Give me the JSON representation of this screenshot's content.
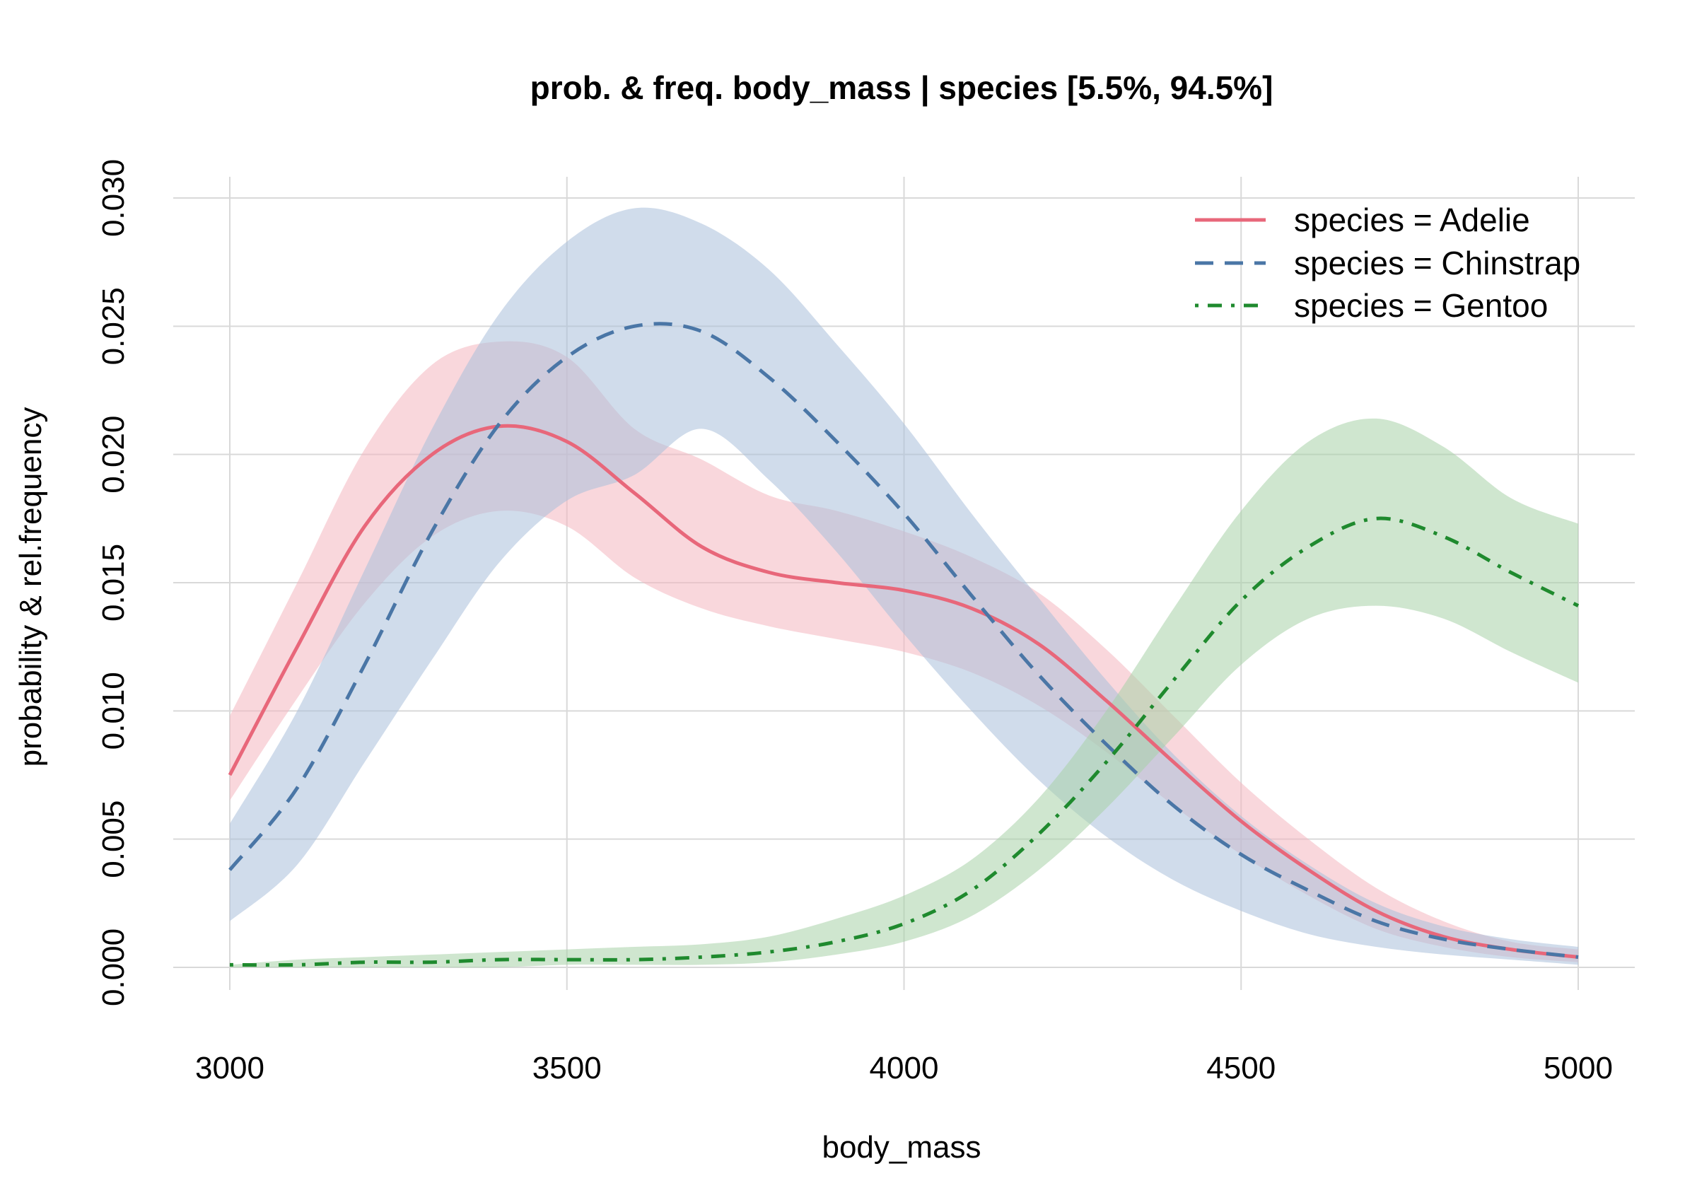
{
  "chart_data": {
    "type": "line",
    "title": "prob. & freq.  body_mass | species  [5.5%, 94.5%]",
    "xlabel": "body_mass",
    "ylabel": "probability & rel.frequency",
    "xlim": [
      3000,
      5000
    ],
    "ylim": [
      0.0,
      0.03
    ],
    "x_ticks": [
      "3000",
      "3500",
      "4000",
      "4500",
      "5000"
    ],
    "y_ticks": [
      "0.000",
      "0.005",
      "0.010",
      "0.015",
      "0.020",
      "0.025",
      "0.030"
    ],
    "grid": true,
    "legend_position": "top-right",
    "x": [
      3000,
      3100,
      3200,
      3300,
      3400,
      3500,
      3600,
      3700,
      3800,
      3900,
      4000,
      4100,
      4200,
      4300,
      4400,
      4500,
      4600,
      4700,
      4800,
      4900,
      5000
    ],
    "series": [
      {
        "name": "species = Adelie",
        "color": "#e8677a",
        "band_color": "#f4b6c0",
        "line_style": "solid",
        "values": [
          0.0075,
          0.0125,
          0.0172,
          0.02,
          0.0211,
          0.0205,
          0.0185,
          0.0164,
          0.0154,
          0.015,
          0.0147,
          0.014,
          0.0126,
          0.0104,
          0.008,
          0.0057,
          0.0038,
          0.0022,
          0.0012,
          0.0007,
          0.0004
        ],
        "lower": [
          0.0065,
          0.0105,
          0.0142,
          0.0168,
          0.0178,
          0.0172,
          0.0152,
          0.014,
          0.0133,
          0.0128,
          0.0123,
          0.0115,
          0.0102,
          0.0084,
          0.0063,
          0.0044,
          0.0028,
          0.0015,
          0.0008,
          0.0004,
          0.0002
        ],
        "upper": [
          0.0098,
          0.015,
          0.0202,
          0.0235,
          0.0244,
          0.0238,
          0.021,
          0.0198,
          0.0184,
          0.0178,
          0.017,
          0.016,
          0.0146,
          0.0124,
          0.0098,
          0.0072,
          0.005,
          0.0031,
          0.0018,
          0.001,
          0.0007
        ]
      },
      {
        "name": "species = Chinstrap",
        "color": "#4a76a6",
        "band_color": "#aac0db",
        "line_style": "dashed",
        "values": [
          0.0038,
          0.007,
          0.0118,
          0.017,
          0.0212,
          0.0238,
          0.025,
          0.0248,
          0.023,
          0.0205,
          0.0177,
          0.0145,
          0.0114,
          0.0087,
          0.0063,
          0.0044,
          0.003,
          0.0018,
          0.0011,
          0.0007,
          0.0004
        ],
        "lower": [
          0.0018,
          0.004,
          0.008,
          0.012,
          0.0158,
          0.0182,
          0.0192,
          0.021,
          0.019,
          0.0162,
          0.013,
          0.01,
          0.0073,
          0.0051,
          0.0034,
          0.0022,
          0.0013,
          0.0008,
          0.0005,
          0.0003,
          0.0001
        ],
        "upper": [
          0.0056,
          0.01,
          0.0155,
          0.021,
          0.0255,
          0.0283,
          0.0296,
          0.029,
          0.0272,
          0.0243,
          0.0212,
          0.0177,
          0.0144,
          0.0112,
          0.0083,
          0.0059,
          0.004,
          0.0025,
          0.0016,
          0.0011,
          0.0008
        ]
      },
      {
        "name": "species = Gentoo",
        "color": "#1f8a2e",
        "band_color": "#a8d1a8",
        "line_style": "dotdash",
        "values": [
          0.0001,
          0.0001,
          0.0002,
          0.0002,
          0.0003,
          0.0003,
          0.0003,
          0.0004,
          0.0006,
          0.001,
          0.0017,
          0.003,
          0.0052,
          0.008,
          0.0112,
          0.0143,
          0.0164,
          0.0175,
          0.0168,
          0.0154,
          0.0141
        ],
        "lower": [
          0.0,
          0.0,
          0.0,
          0.0,
          0.0,
          0.0001,
          0.0001,
          0.0001,
          0.0002,
          0.0005,
          0.001,
          0.002,
          0.0038,
          0.0062,
          0.009,
          0.0118,
          0.0136,
          0.0141,
          0.0136,
          0.0123,
          0.0111
        ],
        "upper": [
          0.0001,
          0.0003,
          0.0004,
          0.0005,
          0.0006,
          0.0007,
          0.0008,
          0.0009,
          0.0012,
          0.0019,
          0.0028,
          0.0042,
          0.0066,
          0.01,
          0.014,
          0.0178,
          0.0205,
          0.0214,
          0.0203,
          0.0183,
          0.0173
        ]
      }
    ]
  }
}
